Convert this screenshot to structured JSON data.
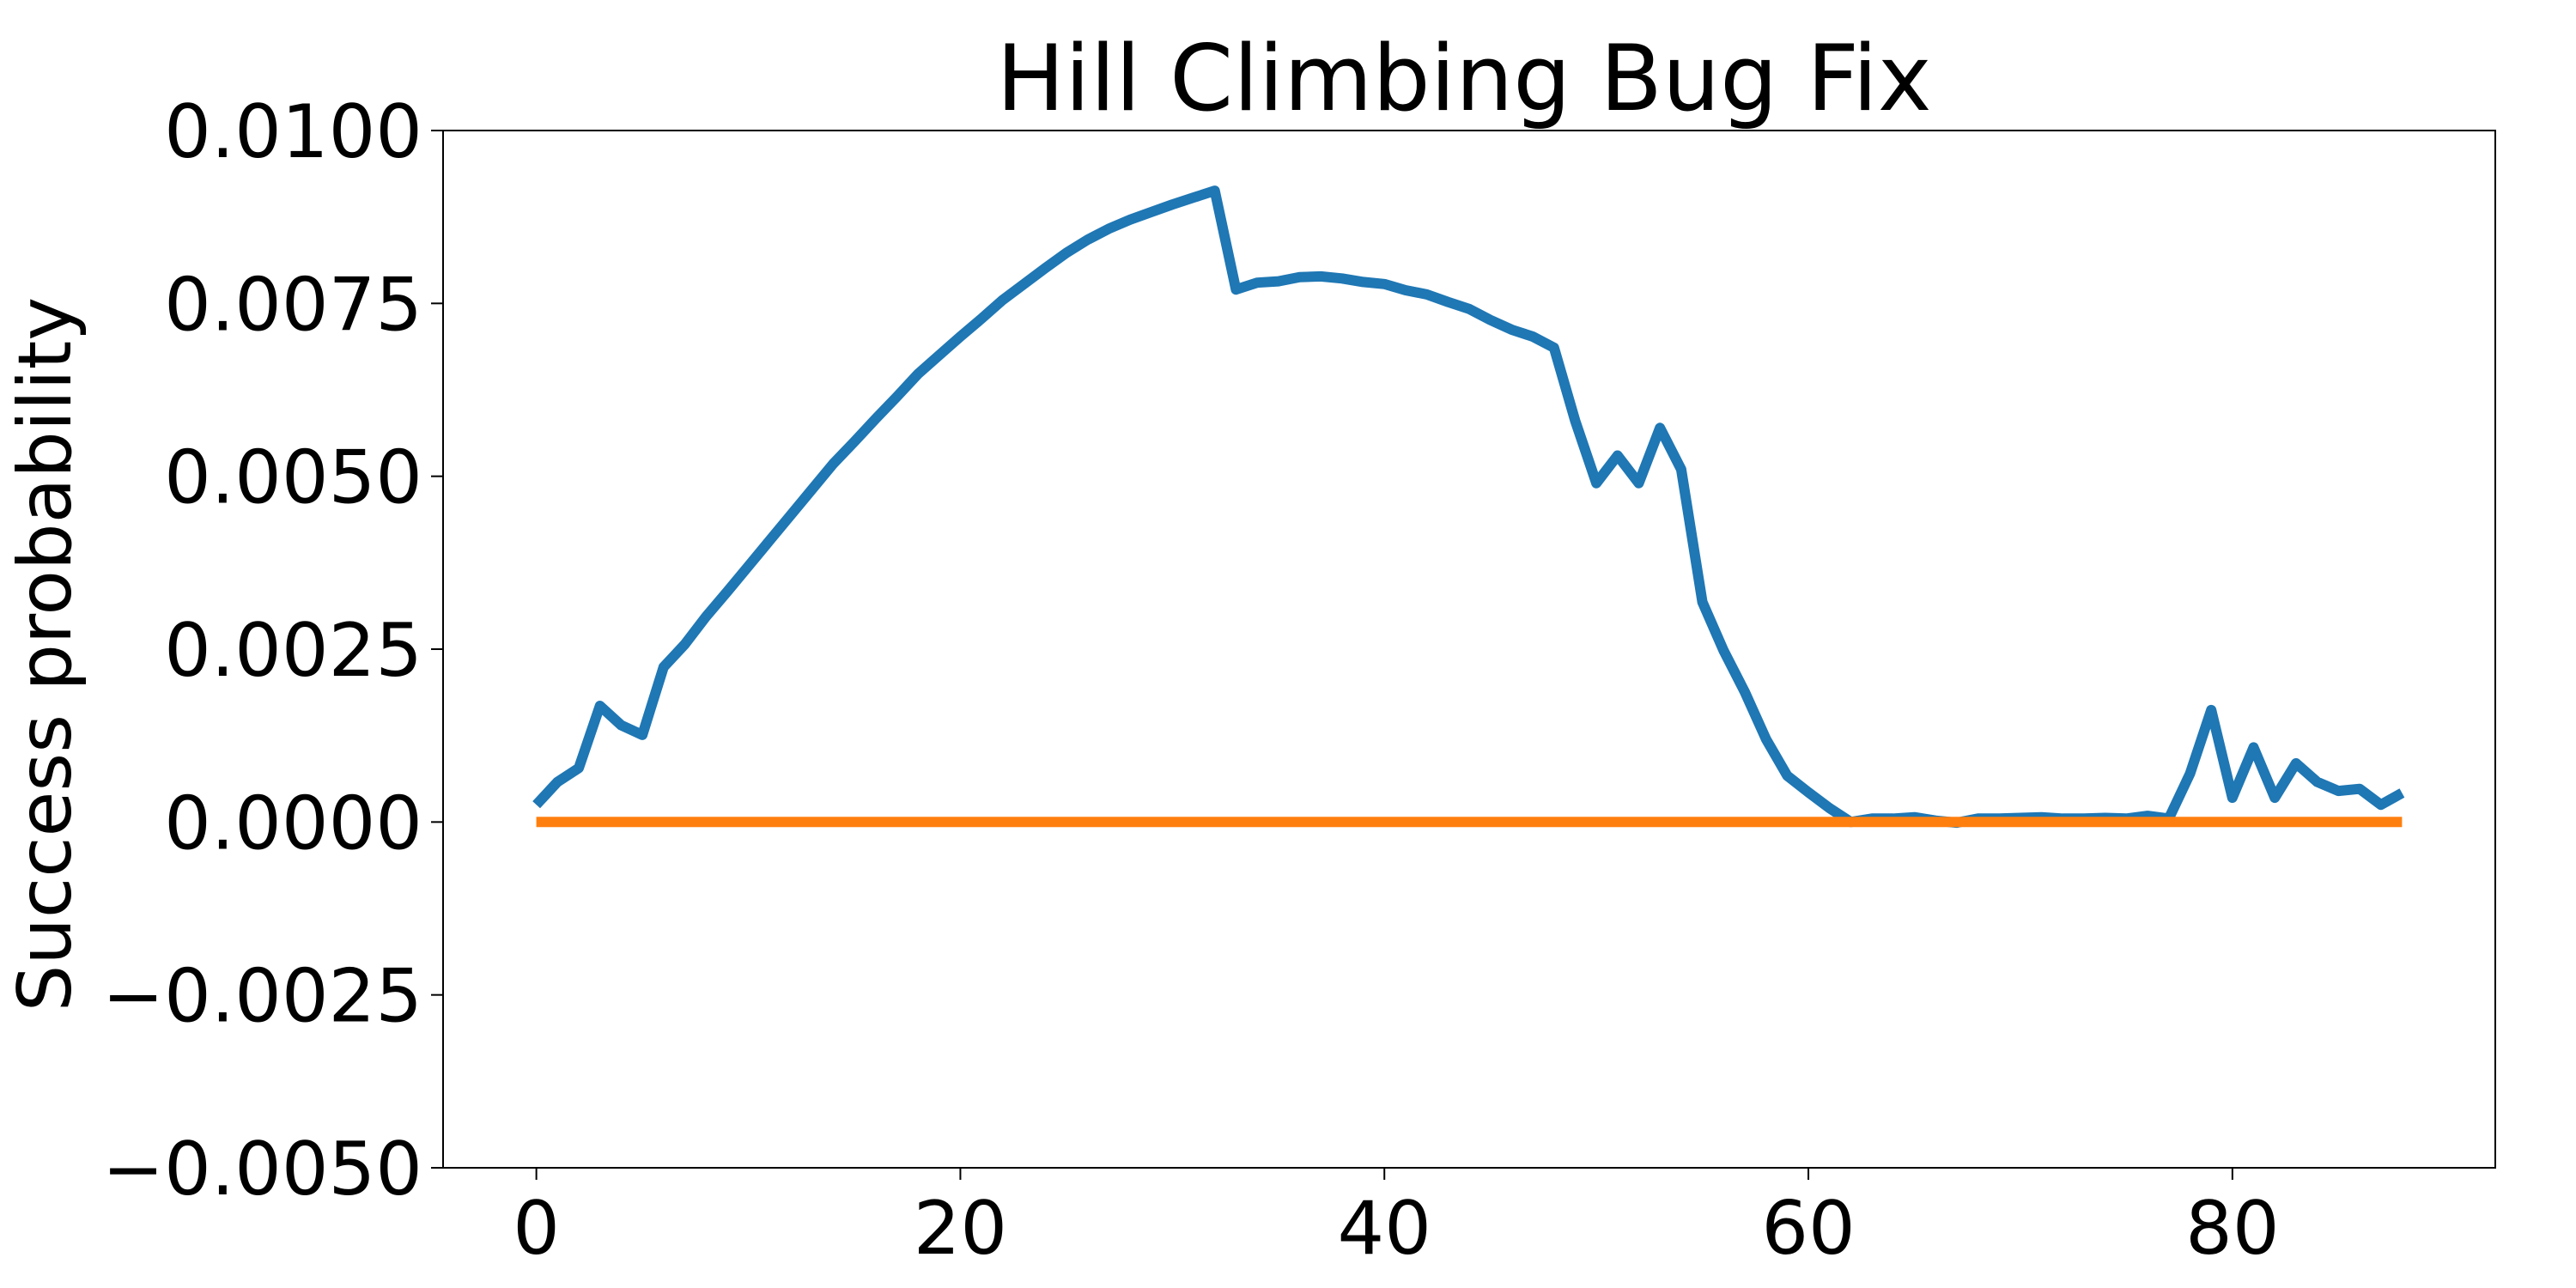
{
  "chart_data": {
    "type": "line",
    "title": "Hill Climbing Bug Fix",
    "xlabel": "",
    "ylabel": "Success probability",
    "xlim": [
      -4.4,
      92.4
    ],
    "ylim": [
      -0.005,
      0.01
    ],
    "xticks": [
      0,
      20,
      40,
      60,
      80
    ],
    "xtick_labels": [
      "0",
      "20",
      "40",
      "60",
      "80"
    ],
    "yticks": [
      -0.005,
      -0.0025,
      0.0,
      0.0025,
      0.005,
      0.0075,
      0.01
    ],
    "ytick_labels": [
      "−0.0050",
      "−0.0025",
      "0.0000",
      "0.0025",
      "0.0050",
      "0.0075",
      "0.0100"
    ],
    "grid": false,
    "legend": "none",
    "series": [
      {
        "color": "#1f77b4",
        "x": [
          0,
          1,
          2,
          3,
          4,
          5,
          6,
          7,
          8,
          9,
          10,
          11,
          12,
          13,
          14,
          15,
          16,
          17,
          18,
          19,
          20,
          21,
          22,
          23,
          24,
          25,
          26,
          27,
          28,
          29,
          30,
          31,
          32,
          33,
          34,
          35,
          36,
          37,
          38,
          39,
          40,
          41,
          42,
          43,
          44,
          45,
          46,
          47,
          48,
          49,
          50,
          51,
          52,
          53,
          54,
          55,
          56,
          57,
          58,
          59,
          60,
          61,
          62,
          63,
          64,
          65,
          66,
          67,
          68,
          69,
          70,
          71,
          72,
          73,
          74,
          75,
          76,
          77,
          78,
          79,
          80,
          81,
          82,
          83,
          84,
          85,
          86,
          87,
          88
        ],
        "values": [
          0.00025,
          0.00058,
          0.00078,
          0.00168,
          0.0014,
          0.00126,
          0.00224,
          0.00257,
          0.00297,
          0.00333,
          0.0037,
          0.00407,
          0.00444,
          0.00481,
          0.00518,
          0.0055,
          0.00583,
          0.00615,
          0.00648,
          0.00675,
          0.00702,
          0.00728,
          0.00755,
          0.00778,
          0.00801,
          0.00823,
          0.00842,
          0.00858,
          0.00871,
          0.00882,
          0.00893,
          0.00903,
          0.00913,
          0.0077,
          0.0078,
          0.00782,
          0.00788,
          0.00789,
          0.00786,
          0.00781,
          0.00778,
          0.00769,
          0.00763,
          0.00752,
          0.00742,
          0.00726,
          0.00712,
          0.00702,
          0.00686,
          0.0058,
          0.0049,
          0.0053,
          0.0049,
          0.0057,
          0.0051,
          0.00318,
          0.00248,
          0.00188,
          0.0012,
          0.00067,
          0.00043,
          0.0002,
          0.0,
          5e-05,
          5e-05,
          7e-05,
          2e-05,
          -1e-05,
          5e-05,
          5e-05,
          6e-05,
          7e-05,
          5e-05,
          5e-05,
          6e-05,
          5e-05,
          9e-05,
          5e-05,
          0.0007,
          0.00162,
          0.00035,
          0.00108,
          0.00035,
          0.00085,
          0.00058,
          0.00045,
          0.00048,
          0.00025,
          0.00042
        ]
      },
      {
        "color": "#ff7f0e",
        "x": [
          0,
          88
        ],
        "values": [
          0.0,
          0.0
        ]
      }
    ]
  }
}
